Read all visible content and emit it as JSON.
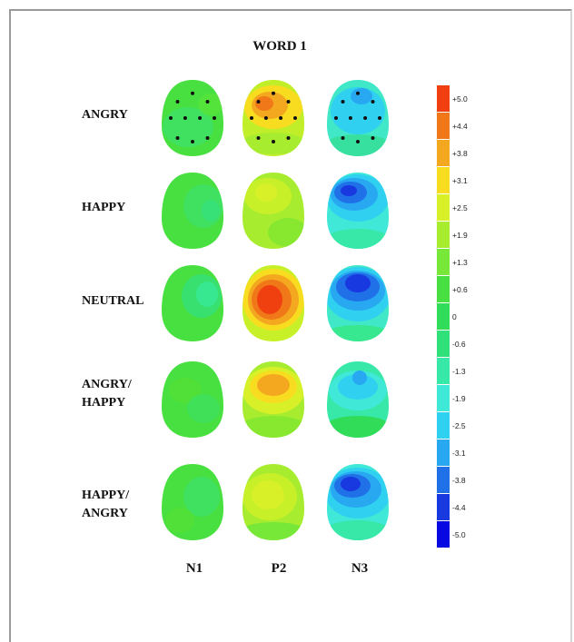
{
  "figure": {
    "title": "WORD 1",
    "rows": [
      {
        "label": "ANGRY",
        "key": "angry"
      },
      {
        "label": "HAPPY",
        "key": "happy"
      },
      {
        "label": "NEUTRAL",
        "key": "neutral"
      },
      {
        "label": "ANGRY/\nHAPPY",
        "key": "angry_happy"
      },
      {
        "label": "HAPPY/\nANGRY",
        "key": "happy_angry"
      }
    ],
    "columns": [
      "N1",
      "P2",
      "N3"
    ],
    "color_scale": {
      "labels": [
        "+5.0",
        "+4.4",
        "+3.8",
        "+3.1",
        "+2.5",
        "+1.9",
        "+1.3",
        "+0.6",
        "0",
        "-0.6",
        "-1.3",
        "-1.9",
        "-2.5",
        "-3.1",
        "-3.8",
        "-4.4",
        "-5.0"
      ],
      "colors": [
        "#f04010",
        "#f07818",
        "#f4a820",
        "#f8dc20",
        "#d8f028",
        "#a8ec30",
        "#78e838",
        "#48e040",
        "#30dc58",
        "#30e078",
        "#38e8a8",
        "#40e8d8",
        "#30d0f0",
        "#28a8f0",
        "#2070e8",
        "#1838e0",
        "#0808e0"
      ]
    },
    "electrodes": [
      [
        -0.55,
        -0.45
      ],
      [
        0.0,
        -0.68
      ],
      [
        0.55,
        -0.45
      ],
      [
        -0.8,
        0.0
      ],
      [
        -0.27,
        0.0
      ],
      [
        0.27,
        0.0
      ],
      [
        0.8,
        0.0
      ],
      [
        -0.55,
        0.55
      ],
      [
        0.0,
        0.65
      ],
      [
        0.55,
        0.55
      ]
    ]
  }
}
